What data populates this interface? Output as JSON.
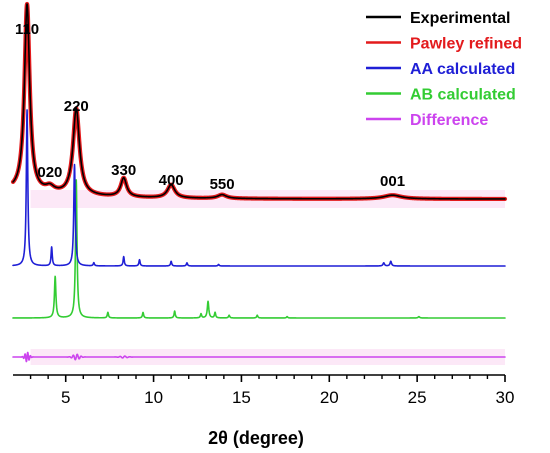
{
  "chart_data": {
    "type": "line",
    "xlabel": "2θ (degree)",
    "ylabel": "",
    "xlim": [
      2,
      30
    ],
    "xticks": [
      5,
      10,
      15,
      20,
      25,
      30
    ],
    "yaxis_visible": false,
    "legend_position": "top-right",
    "legend": [
      {
        "name": "Experimental",
        "color": "#000000"
      },
      {
        "name": "Pawley refined",
        "color": "#e31a1c"
      },
      {
        "name": "AA calculated",
        "color": "#1f1fd6"
      },
      {
        "name": "AB calculated",
        "color": "#33cc33"
      },
      {
        "name": "Difference",
        "color": "#cc44ee"
      }
    ],
    "peak_labels": [
      {
        "text": "110",
        "x": 2.8
      },
      {
        "text": "020",
        "x": 4.1
      },
      {
        "text": "220",
        "x": 5.6
      },
      {
        "text": "330",
        "x": 8.3
      },
      {
        "text": "400",
        "x": 11.0
      },
      {
        "text": "550",
        "x": 13.9
      },
      {
        "text": "001",
        "x": 23.6
      }
    ],
    "series": [
      {
        "name": "Experimental",
        "color": "#000000",
        "baseline": 0.58,
        "peaks": [
          [
            2.8,
            1.0,
            0.18
          ],
          [
            4.1,
            0.03,
            0.3
          ],
          [
            5.6,
            0.46,
            0.22
          ],
          [
            8.3,
            0.1,
            0.2
          ],
          [
            11.0,
            0.07,
            0.25
          ],
          [
            13.9,
            0.02,
            0.3
          ],
          [
            23.6,
            0.02,
            0.6
          ]
        ]
      },
      {
        "name": "Pawley refined",
        "color": "#e31a1c",
        "baseline": 0.58,
        "peaks": [
          [
            2.8,
            1.0,
            0.18
          ],
          [
            4.1,
            0.03,
            0.3
          ],
          [
            5.6,
            0.46,
            0.22
          ],
          [
            8.3,
            0.1,
            0.2
          ],
          [
            11.0,
            0.07,
            0.25
          ],
          [
            13.9,
            0.02,
            0.3
          ],
          [
            23.6,
            0.02,
            0.6
          ]
        ]
      },
      {
        "name": "AA calculated",
        "color": "#1f1fd6",
        "baseline": 0.0,
        "peaks": [
          [
            2.8,
            1.0,
            0.05
          ],
          [
            4.2,
            0.12,
            0.04
          ],
          [
            5.5,
            0.65,
            0.05
          ],
          [
            6.6,
            0.02,
            0.04
          ],
          [
            8.3,
            0.06,
            0.04
          ],
          [
            9.2,
            0.04,
            0.04
          ],
          [
            11.0,
            0.03,
            0.04
          ],
          [
            11.9,
            0.02,
            0.04
          ],
          [
            13.7,
            0.01,
            0.04
          ],
          [
            23.1,
            0.02,
            0.05
          ],
          [
            23.5,
            0.03,
            0.05
          ]
        ]
      },
      {
        "name": "AB calculated",
        "color": "#33cc33",
        "baseline": 0.0,
        "peaks": [
          [
            4.4,
            0.3,
            0.05
          ],
          [
            5.6,
            1.0,
            0.05
          ],
          [
            7.4,
            0.04,
            0.04
          ],
          [
            9.4,
            0.04,
            0.04
          ],
          [
            11.2,
            0.05,
            0.04
          ],
          [
            12.7,
            0.03,
            0.04
          ],
          [
            13.1,
            0.12,
            0.05
          ],
          [
            13.5,
            0.04,
            0.04
          ],
          [
            14.3,
            0.02,
            0.04
          ],
          [
            15.9,
            0.02,
            0.04
          ],
          [
            17.6,
            0.01,
            0.04
          ],
          [
            25.1,
            0.01,
            0.05
          ]
        ]
      },
      {
        "name": "Difference",
        "color": "#cc44ee",
        "baseline": 0.0,
        "wiggles": [
          [
            2.8,
            0.06,
            0.12,
            3.2
          ],
          [
            5.6,
            0.035,
            0.18,
            2.2
          ],
          [
            8.3,
            0.012,
            0.2,
            1.8
          ]
        ]
      }
    ]
  }
}
